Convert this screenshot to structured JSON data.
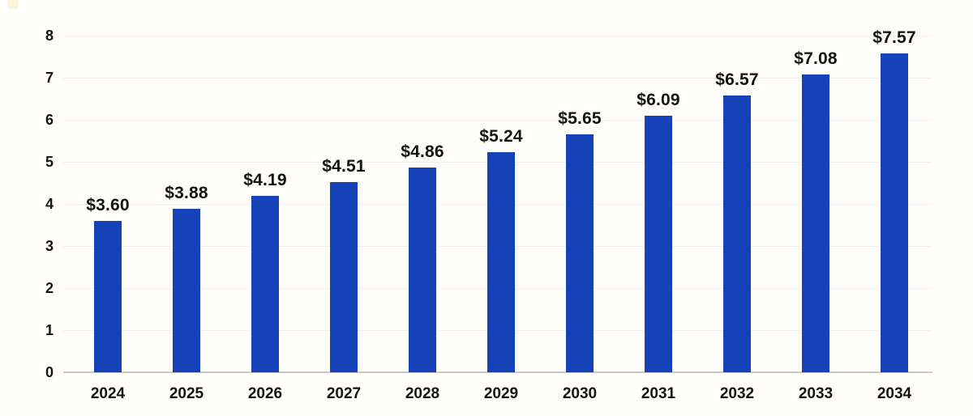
{
  "chart_data": {
    "type": "bar",
    "title": "",
    "xlabel": "",
    "ylabel": "",
    "categories": [
      "2024",
      "2025",
      "2026",
      "2027",
      "2028",
      "2029",
      "2030",
      "2031",
      "2032",
      "2033",
      "2034"
    ],
    "values": [
      3.6,
      3.88,
      4.19,
      4.51,
      4.86,
      5.24,
      5.65,
      6.09,
      6.57,
      7.08,
      7.57
    ],
    "value_labels": [
      "$3.60",
      "$3.88",
      "$4.19",
      "$4.51",
      "$4.86",
      "$5.24",
      "$5.65",
      "$6.09",
      "$6.57",
      "$7.08",
      "$7.57"
    ],
    "ylim": [
      0,
      8
    ],
    "yticks": [
      0,
      1,
      2,
      3,
      4,
      5,
      6,
      7,
      8
    ],
    "grid": "horizontal",
    "legend": "none",
    "colors": {
      "bar": "#1542B7",
      "gridline": "#EFEFEF",
      "baseline": "#C9C9C9",
      "text": "#141414",
      "background": "#FFFEFA"
    }
  }
}
